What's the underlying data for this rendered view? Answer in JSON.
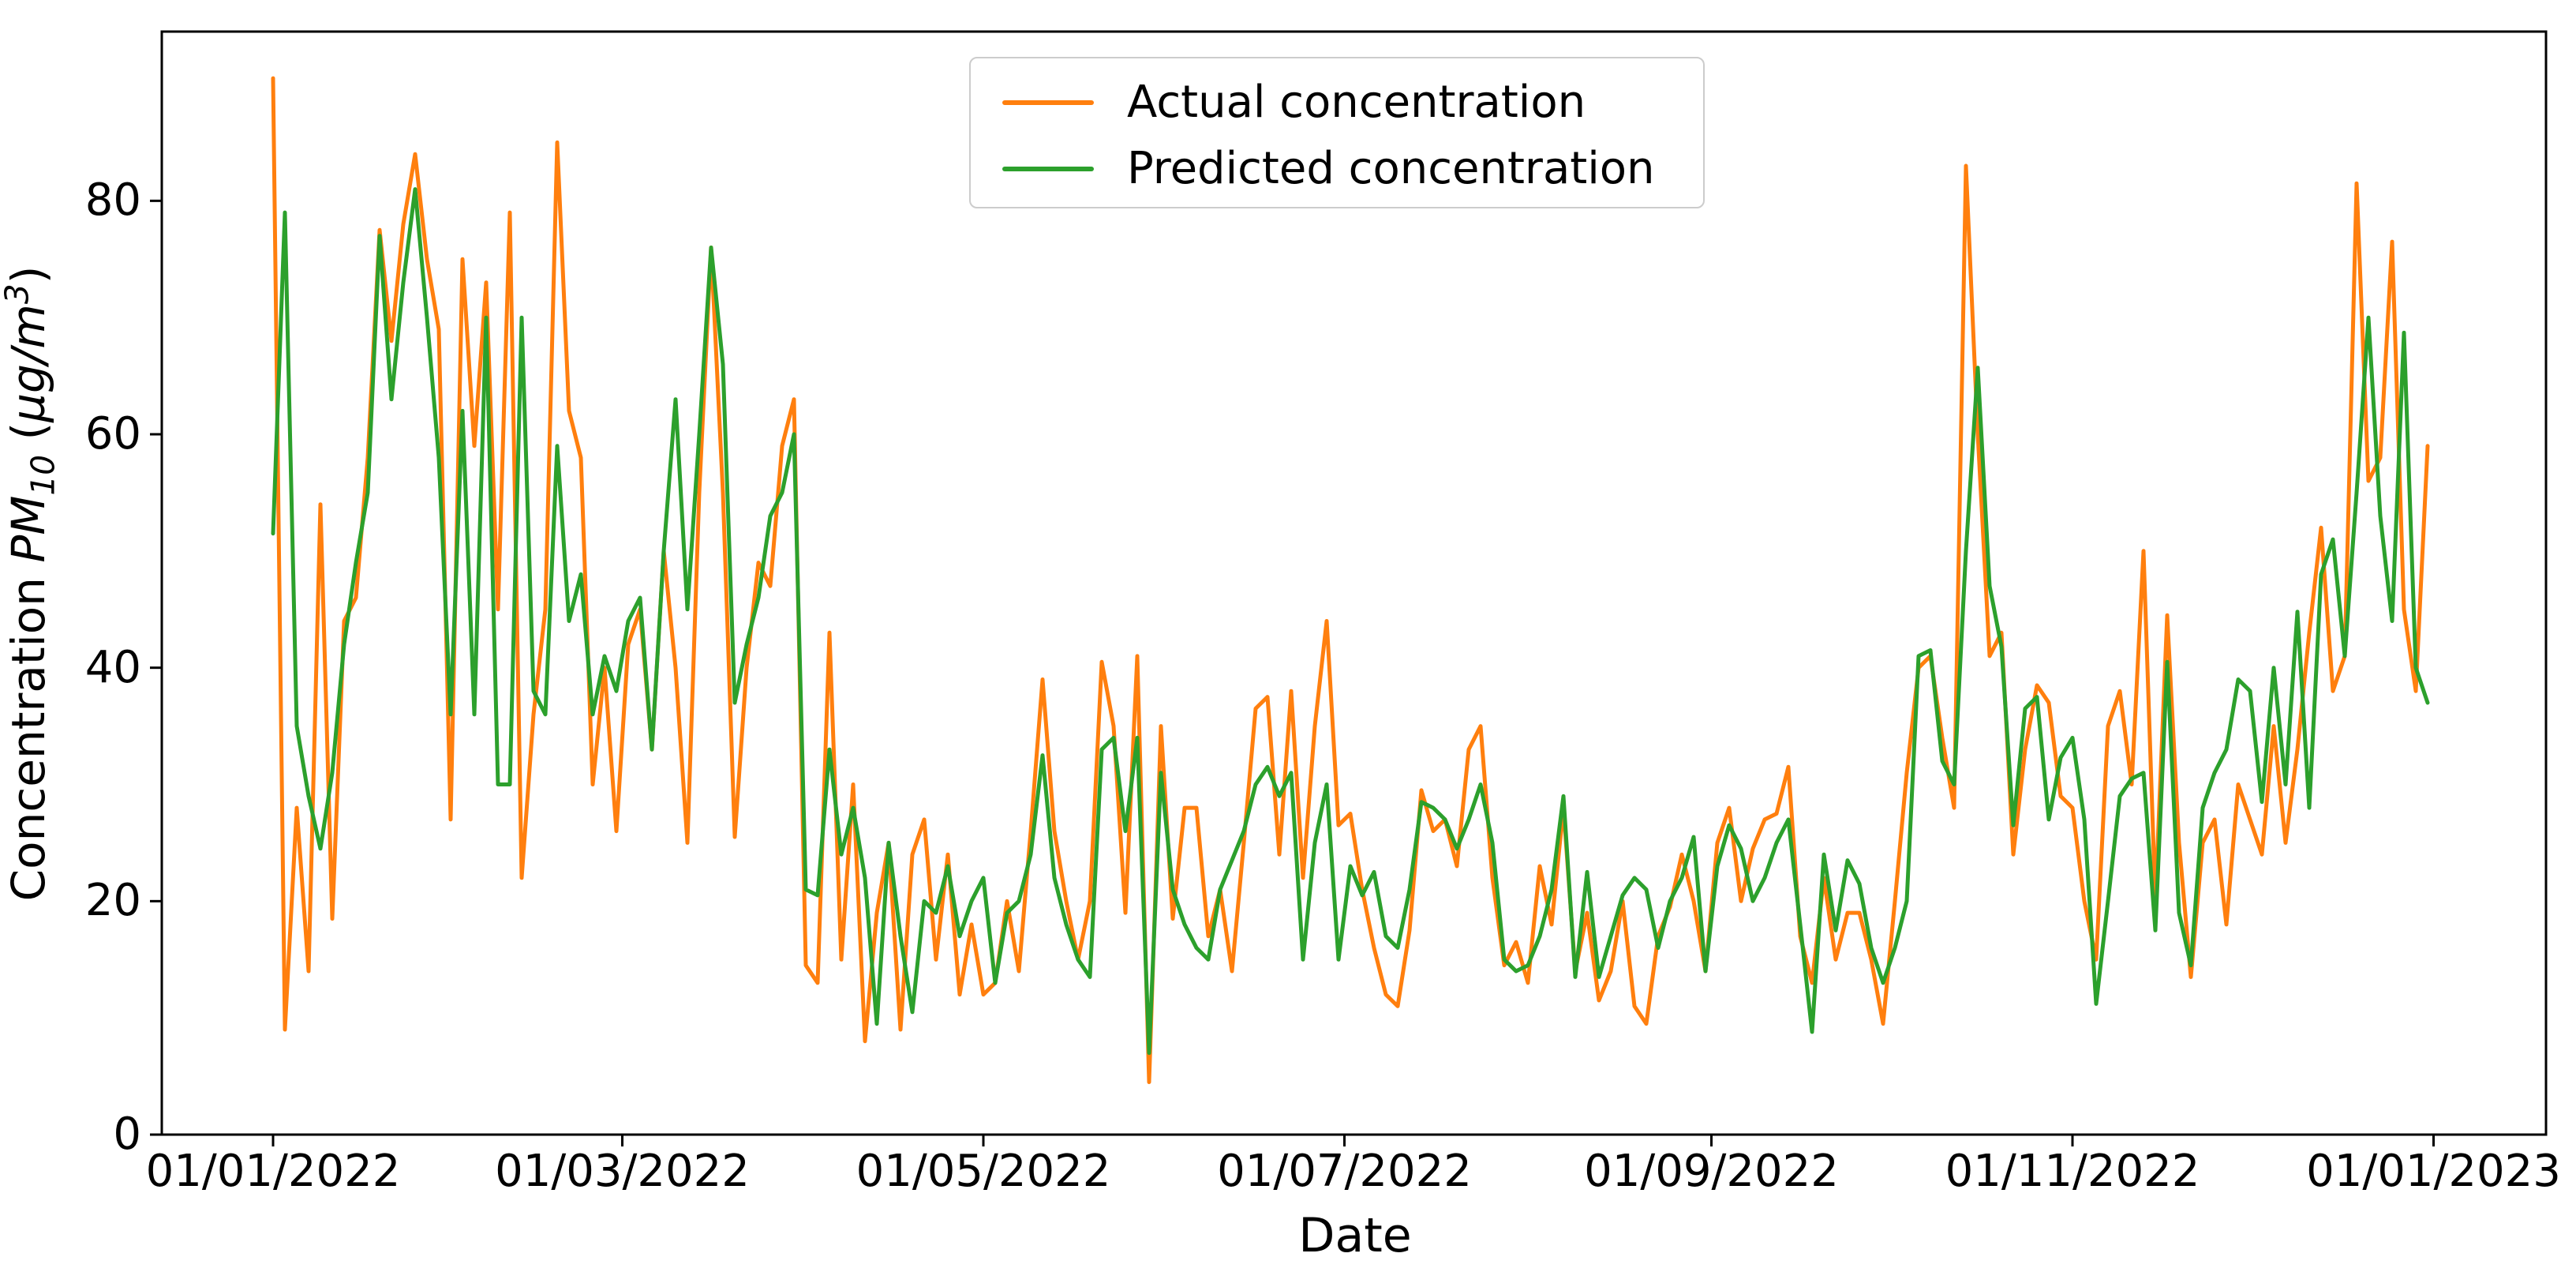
{
  "chart_data": {
    "type": "line",
    "title": "",
    "xlabel": "Date",
    "ylabel": "Concentration PM₁₀ (µg/m³)",
    "ylabel_runs": [
      {
        "text": "Concentration ",
        "style": "normal"
      },
      {
        "text": "PM",
        "style": "italic"
      },
      {
        "text": "10",
        "style": "subscript"
      },
      {
        "text": " (",
        "style": "normal"
      },
      {
        "text": "µg/m",
        "style": "italic"
      },
      {
        "text": "3",
        "style": "superscript"
      },
      {
        "text": ")",
        "style": "normal"
      }
    ],
    "x_tick_labels": [
      "01/01/2022",
      "01/03/2022",
      "01/05/2022",
      "01/07/2022",
      "01/09/2022",
      "01/11/2022",
      "01/01/2023"
    ],
    "x_tick_days": [
      0,
      59,
      120,
      181,
      243,
      304,
      365
    ],
    "y_tick_labels": [
      "0",
      "20",
      "40",
      "60",
      "80"
    ],
    "y_ticks": [
      0,
      20,
      40,
      60,
      80
    ],
    "ylim": [
      0,
      94.5
    ],
    "x_start_date": "01/01/2022",
    "x_end_date": "01/01/2023",
    "sampling_interval_days": 2,
    "grid": false,
    "legend_position": "upper center",
    "axis_color": "#000000",
    "background_color": "#ffffff",
    "series": [
      {
        "name": "Actual concentration",
        "color": "#ff7f0e",
        "values": [
          90.5,
          9,
          28,
          14,
          54,
          18.5,
          44,
          46,
          58,
          77.5,
          68,
          78,
          84,
          75,
          69,
          27,
          75,
          59,
          73,
          45,
          79,
          22,
          36,
          45,
          85,
          62,
          58,
          30,
          40,
          26,
          42,
          45,
          33,
          50,
          40,
          25,
          55,
          76,
          55,
          25.5,
          40,
          49,
          47,
          59,
          63,
          14.5,
          13,
          43,
          15,
          30,
          8,
          19,
          25,
          9,
          24,
          27,
          15,
          24,
          12,
          18,
          12,
          13,
          20,
          14,
          26,
          39,
          26,
          20,
          15,
          20,
          40.5,
          35,
          19,
          41,
          4.5,
          35,
          18.5,
          28,
          28,
          17,
          21,
          14,
          25,
          36.5,
          37.5,
          24,
          38,
          22,
          35,
          44,
          26.5,
          27.5,
          21,
          16,
          12,
          11,
          17.5,
          29.5,
          26,
          27,
          23,
          33,
          35,
          22,
          14.5,
          16.5,
          13,
          23,
          18,
          28,
          14,
          19,
          11.5,
          14,
          20,
          11,
          9.5,
          17,
          19.5,
          24,
          20,
          14,
          25,
          28,
          20,
          24.5,
          27,
          27.5,
          31.5,
          17,
          13,
          22,
          15,
          19,
          19,
          15,
          9.5,
          20,
          31,
          40,
          41,
          34,
          28,
          83,
          60,
          41,
          43,
          24,
          33,
          38.5,
          37,
          29,
          28,
          20,
          15,
          35,
          38,
          30,
          50,
          20,
          44.5,
          25,
          13.5,
          25,
          27,
          18,
          30,
          27,
          24,
          35,
          25,
          33,
          43,
          52,
          38,
          41,
          81.5,
          56,
          58,
          76.5,
          45,
          38,
          59
        ]
      },
      {
        "name": "Predicted concentration",
        "color": "#2ca02c",
        "values": [
          51.5,
          79,
          35,
          29,
          24.5,
          31,
          42,
          49,
          55,
          77,
          63,
          73,
          81,
          70,
          58,
          36,
          62,
          36,
          70,
          30,
          30,
          70,
          38,
          36,
          59,
          44,
          48,
          36,
          41,
          38,
          44,
          46,
          33,
          50,
          63,
          45,
          60,
          76,
          66,
          37,
          42,
          46,
          53,
          55,
          60,
          21,
          20.5,
          33,
          24,
          28,
          22,
          9.5,
          25,
          17,
          10.5,
          20,
          19,
          23,
          17,
          20,
          22,
          13,
          19,
          20,
          24,
          32.5,
          22,
          18,
          15,
          13.5,
          33,
          34,
          26,
          34,
          7,
          31,
          21,
          18,
          16,
          15,
          21,
          23.5,
          26,
          30,
          31.5,
          29,
          31,
          15,
          25,
          30,
          15,
          23,
          20.5,
          22.5,
          17,
          16,
          21,
          28.5,
          28,
          27,
          24.5,
          27,
          30,
          25,
          15,
          14,
          14.5,
          17,
          21,
          29,
          13.5,
          22.5,
          13.5,
          17,
          20.5,
          22,
          21,
          16,
          20,
          22,
          25.5,
          14,
          23,
          26.5,
          24.5,
          20,
          22,
          25,
          27,
          18,
          8.8,
          24,
          17.5,
          23.5,
          21.5,
          16,
          13,
          16,
          20,
          41,
          41.5,
          32,
          30,
          50,
          65.7,
          47,
          41.8,
          26.5,
          36.5,
          37.5,
          27,
          32.3,
          34,
          27,
          11.2,
          20,
          29,
          30.5,
          31,
          17.5,
          40.5,
          19,
          14.5,
          28,
          31,
          33,
          39,
          38,
          28.5,
          40,
          30,
          44.8,
          28,
          48,
          51,
          41,
          55,
          70,
          53,
          44,
          68.7,
          40,
          37
        ]
      }
    ]
  }
}
